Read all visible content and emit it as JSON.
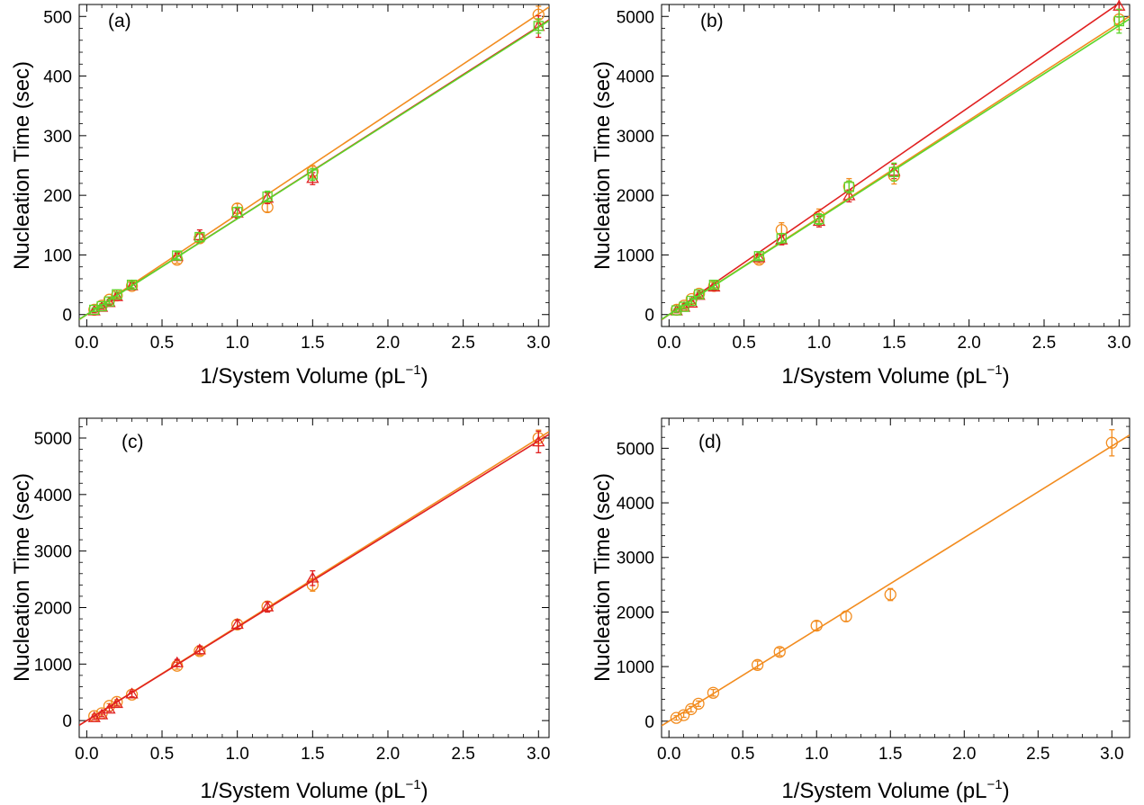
{
  "colors": {
    "orange": "#f28c1f",
    "red": "#e02020",
    "green": "#5cd62a"
  },
  "chart_data": [
    {
      "type": "scatter",
      "panel_label": "(a)",
      "xlabel": "1/System Volume (pL",
      "xlabel_sup": "−1",
      "xlabel_end": ")",
      "ylabel": "Nucleation Time (sec)",
      "xlim": [
        -0.05,
        3.07
      ],
      "ylim": [
        -20,
        520
      ],
      "xticks": [
        "0.0",
        "0.5",
        "1.0",
        "1.5",
        "2.0",
        "2.5",
        "3.0"
      ],
      "yticks": [
        "0",
        "100",
        "200",
        "300",
        "400",
        "500"
      ],
      "series": [
        {
          "marker": "circle",
          "color": "orange",
          "fit": [
            0,
            168
          ],
          "x": [
            0.05,
            0.1,
            0.15,
            0.2,
            0.3,
            0.6,
            0.75,
            1.0,
            1.2,
            1.5,
            3.0
          ],
          "y": [
            8,
            15,
            25,
            32,
            48,
            92,
            128,
            178,
            180,
            240,
            503
          ],
          "err": [
            3,
            3,
            4,
            4,
            5,
            6,
            7,
            8,
            8,
            10,
            14
          ]
        },
        {
          "marker": "triangle",
          "color": "red",
          "fit": [
            0,
            161
          ],
          "x": [
            0.05,
            0.1,
            0.15,
            0.2,
            0.3,
            0.6,
            0.75,
            1.0,
            1.2,
            1.5,
            3.0
          ],
          "y": [
            6,
            12,
            20,
            30,
            48,
            97,
            132,
            170,
            195,
            228,
            483
          ],
          "err": [
            3,
            3,
            4,
            4,
            5,
            6,
            10,
            8,
            9,
            10,
            18
          ]
        },
        {
          "marker": "square",
          "color": "green",
          "fit": [
            0,
            160.5
          ],
          "x": [
            0.05,
            0.1,
            0.15,
            0.2,
            0.3,
            0.6,
            0.75,
            1.0,
            1.2,
            1.5,
            3.0
          ],
          "y": [
            8,
            14,
            22,
            34,
            50,
            99,
            130,
            172,
            198,
            235,
            484
          ],
          "err": [
            3,
            3,
            4,
            4,
            5,
            6,
            7,
            8,
            9,
            10,
            12
          ]
        }
      ]
    },
    {
      "type": "scatter",
      "panel_label": "(b)",
      "xlabel": "1/System Volume (pL",
      "xlabel_sup": "−1",
      "xlabel_end": ")",
      "ylabel": "Nucleation Time (sec)",
      "xlim": [
        -0.05,
        3.07
      ],
      "ylim": [
        -200,
        5200
      ],
      "xticks": [
        "0.0",
        "0.5",
        "1.0",
        "1.5",
        "2.0",
        "2.5",
        "3.0"
      ],
      "yticks": [
        "0",
        "1000",
        "2000",
        "3000",
        "4000",
        "5000"
      ],
      "series": [
        {
          "marker": "circle",
          "color": "orange",
          "fit": [
            0,
            1630
          ],
          "x": [
            0.05,
            0.1,
            0.15,
            0.2,
            0.3,
            0.6,
            0.75,
            1.0,
            1.2,
            1.5,
            3.0
          ],
          "y": [
            80,
            150,
            260,
            350,
            480,
            920,
            1420,
            1650,
            2150,
            2330,
            4950
          ],
          "err": [
            30,
            30,
            40,
            40,
            50,
            60,
            120,
            120,
            130,
            140,
            170
          ]
        },
        {
          "marker": "triangle",
          "color": "red",
          "fit": [
            0,
            1740
          ],
          "x": [
            0.05,
            0.1,
            0.15,
            0.2,
            0.3,
            0.6,
            0.75,
            1.0,
            1.2,
            1.5,
            3.0
          ],
          "y": [
            60,
            120,
            190,
            320,
            460,
            950,
            1250,
            1560,
            1990,
            2400,
            5170
          ],
          "err": [
            30,
            30,
            40,
            40,
            50,
            60,
            80,
            90,
            100,
            120,
            180
          ]
        },
        {
          "marker": "square",
          "color": "green",
          "fit": [
            0,
            1615
          ],
          "x": [
            0.05,
            0.1,
            0.15,
            0.2,
            0.3,
            0.6,
            0.75,
            1.0,
            1.2,
            1.5,
            3.0
          ],
          "y": [
            70,
            130,
            230,
            340,
            500,
            980,
            1280,
            1600,
            2140,
            2390,
            4920
          ],
          "err": [
            30,
            30,
            40,
            40,
            50,
            60,
            80,
            90,
            100,
            150,
            200
          ]
        }
      ]
    },
    {
      "type": "scatter",
      "panel_label": "(c)",
      "xlabel": "1/System Volume (pL",
      "xlabel_sup": "−1",
      "xlabel_end": ")",
      "ylabel": "Nucleation Time (sec)",
      "xlim": [
        -0.05,
        3.07
      ],
      "ylim": [
        -300,
        5350
      ],
      "xticks": [
        "0.0",
        "0.5",
        "1.0",
        "1.5",
        "2.0",
        "2.5",
        "3.0"
      ],
      "yticks": [
        "0",
        "1000",
        "2000",
        "3000",
        "4000",
        "5000"
      ],
      "series": [
        {
          "marker": "circle",
          "color": "orange",
          "fit": [
            0,
            1665
          ],
          "x": [
            0.05,
            0.1,
            0.15,
            0.2,
            0.3,
            0.6,
            0.75,
            1.0,
            1.2,
            1.5,
            3.0
          ],
          "y": [
            80,
            130,
            260,
            330,
            460,
            970,
            1230,
            1700,
            2020,
            2400,
            5000
          ],
          "err": [
            30,
            30,
            40,
            40,
            50,
            60,
            70,
            80,
            90,
            110,
            140
          ]
        },
        {
          "marker": "triangle",
          "color": "red",
          "fit": [
            0,
            1650
          ],
          "x": [
            0.05,
            0.1,
            0.15,
            0.2,
            0.3,
            0.6,
            0.75,
            1.0,
            1.2,
            1.5,
            3.0
          ],
          "y": [
            50,
            100,
            200,
            300,
            470,
            1020,
            1250,
            1700,
            2010,
            2520,
            4930
          ],
          "err": [
            30,
            30,
            40,
            40,
            50,
            60,
            70,
            80,
            90,
            130,
            190
          ]
        }
      ]
    },
    {
      "type": "scatter",
      "panel_label": "(d)",
      "xlabel": "1/System Volume (pL",
      "xlabel_sup": "−1",
      "xlabel_end": ")",
      "ylabel": "Nucleation Time (sec)",
      "xlim": [
        -0.05,
        3.12
      ],
      "ylim": [
        -300,
        5550
      ],
      "xticks": [
        "0.0",
        "0.5",
        "1.0",
        "1.5",
        "2.0",
        "2.5",
        "3.0"
      ],
      "yticks": [
        "0",
        "1000",
        "2000",
        "3000",
        "4000",
        "5000"
      ],
      "series": [
        {
          "marker": "circle",
          "color": "orange",
          "fit": [
            0,
            1680
          ],
          "x": [
            0.05,
            0.1,
            0.15,
            0.2,
            0.3,
            0.6,
            0.75,
            1.0,
            1.2,
            1.5,
            3.0
          ],
          "y": [
            60,
            110,
            220,
            320,
            520,
            1030,
            1270,
            1750,
            1920,
            2320,
            5100
          ],
          "err": [
            40,
            40,
            50,
            50,
            60,
            70,
            70,
            80,
            90,
            110,
            240
          ]
        }
      ]
    }
  ]
}
